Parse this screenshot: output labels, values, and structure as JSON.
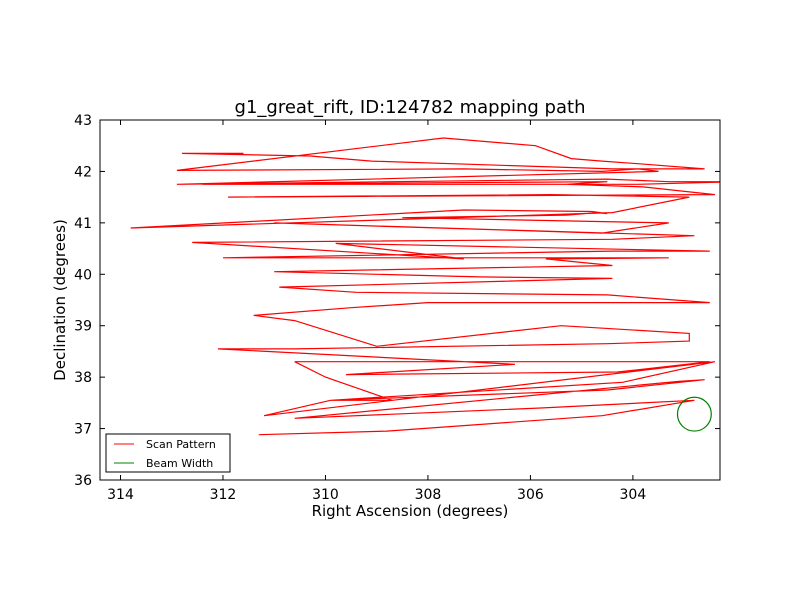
{
  "chart_data": {
    "type": "line",
    "title": "g1_great_rift, ID:124782 mapping path",
    "xlabel": "Right Ascension (degrees)",
    "ylabel": "Declination (degrees)",
    "xlim": [
      314.4,
      302.3
    ],
    "ylim": [
      36,
      43
    ],
    "x_ticks": [
      314,
      312,
      310,
      308,
      306,
      304
    ],
    "y_ticks": [
      36,
      37,
      38,
      39,
      40,
      41,
      42,
      43
    ],
    "x_tick_labels": [
      "314",
      "312",
      "310",
      "308",
      "306",
      "304"
    ],
    "y_tick_labels": [
      "36",
      "37",
      "38",
      "39",
      "40",
      "41",
      "42",
      "43"
    ],
    "grid": false,
    "legend_position": "lower-left",
    "series": [
      {
        "name": "Scan Pattern",
        "color": "#ff0000",
        "x": [
          311.3,
          308.8,
          304.6,
          302.8,
          305.8,
          310.6,
          303.1,
          302.6,
          304.5,
          309.9,
          311.2,
          302.4,
          304.2,
          309.9,
          308.7,
          310.0,
          310.6,
          302.5,
          304.3,
          309.6,
          306.3,
          312.1,
          310.6,
          304.5,
          302.9,
          302.9,
          305.4,
          309.0,
          310.6,
          311.4,
          309.5,
          308.0,
          302.5,
          304.5,
          309.4,
          310.9,
          304.4,
          307.0,
          311.0,
          304.4,
          305.7,
          303.3,
          312.0,
          304.4,
          302.5,
          309.8,
          307.3,
          312.6,
          304.4,
          302.8,
          311.0,
          304.6,
          303.3,
          308.5,
          305.3,
          304.7,
          304.5,
          304.8,
          307.3,
          313.8,
          304.4,
          302.9,
          305.6,
          311.9,
          302.4,
          303.8,
          305.3,
          304.5,
          312.4,
          303.9,
          302.0,
          303.3,
          304.5,
          312.9,
          303.5,
          303.9,
          304.6,
          307.3,
          312.9,
          307.7,
          305.9,
          305.2,
          304.6,
          303.9,
          302.6,
          304.4,
          309.1,
          310.3,
          312.8,
          311.6
        ],
        "y": [
          36.88,
          36.95,
          37.25,
          37.55,
          37.4,
          37.2,
          37.92,
          37.95,
          37.75,
          37.55,
          37.25,
          38.3,
          37.9,
          37.55,
          37.55,
          38.0,
          38.3,
          38.3,
          38.1,
          38.05,
          38.25,
          38.55,
          38.55,
          38.65,
          38.7,
          38.85,
          39.0,
          38.6,
          39.1,
          39.2,
          39.35,
          39.45,
          39.45,
          39.6,
          39.65,
          39.75,
          39.92,
          39.95,
          40.05,
          40.17,
          40.3,
          40.32,
          40.32,
          40.45,
          40.45,
          40.6,
          40.3,
          40.62,
          40.68,
          40.75,
          41.0,
          40.8,
          41.0,
          41.1,
          41.15,
          41.2,
          41.18,
          41.22,
          41.25,
          40.9,
          41.2,
          41.5,
          41.55,
          41.5,
          41.55,
          41.7,
          41.75,
          41.8,
          41.75,
          41.75,
          41.8,
          41.8,
          41.85,
          41.75,
          42.0,
          42.05,
          42.0,
          42.05,
          42.02,
          42.65,
          42.5,
          42.25,
          42.2,
          42.15,
          42.05,
          42.05,
          42.2,
          42.3,
          42.35,
          42.35
        ]
      },
      {
        "name": "Beam Width",
        "color": "#008000",
        "center_x": 302.8,
        "center_y": 37.28,
        "radius_deg": 0.33
      }
    ]
  }
}
